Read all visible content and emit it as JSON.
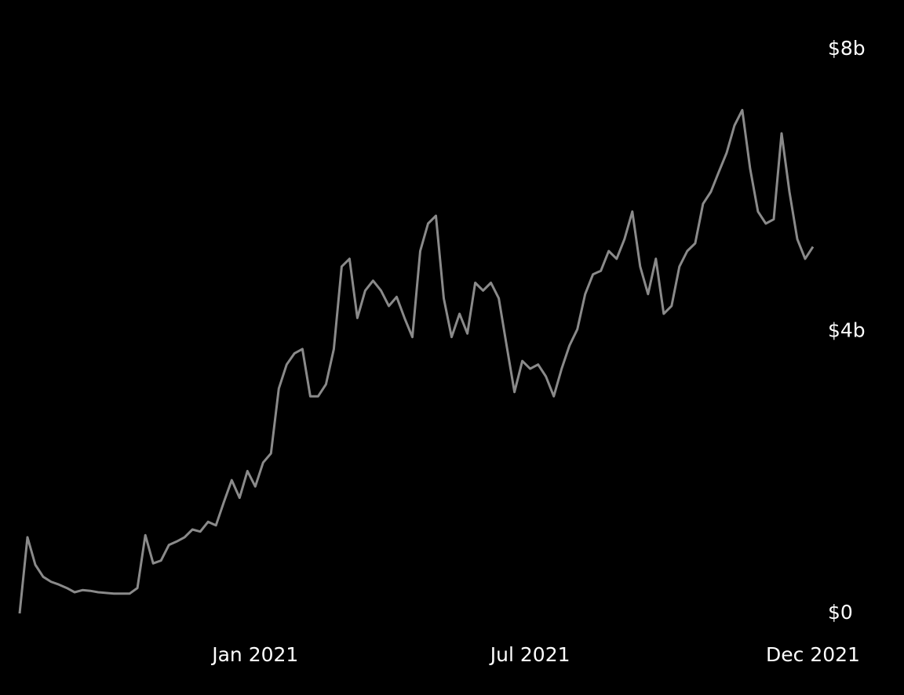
{
  "chart_data": {
    "type": "line",
    "categories": [
      null,
      null,
      null,
      null,
      null,
      null,
      null,
      null,
      null,
      null,
      null,
      null,
      null,
      null,
      null,
      null,
      null,
      null,
      null,
      null,
      null,
      null,
      null,
      null,
      null,
      null,
      null,
      null,
      null,
      null,
      "Jan 2021",
      null,
      null,
      null,
      null,
      null,
      null,
      null,
      null,
      null,
      null,
      null,
      null,
      null,
      null,
      null,
      null,
      null,
      null,
      null,
      null,
      null,
      null,
      null,
      null,
      null,
      null,
      null,
      null,
      null,
      null,
      null,
      null,
      null,
      null,
      "Jul 2021",
      null,
      null,
      null,
      null,
      null,
      null,
      null,
      null,
      null,
      null,
      null,
      null,
      null,
      null,
      null,
      null,
      null,
      null,
      null,
      null,
      null,
      null,
      null,
      null,
      null,
      null,
      null,
      null,
      null,
      null,
      null,
      null,
      null,
      null,
      null,
      "Dec 2021"
    ],
    "values": [
      0,
      1080000000.0,
      690000000.0,
      520000000.0,
      450000000.0,
      410000000.0,
      360000000.0,
      300000000.0,
      330000000.0,
      320000000.0,
      300000000.0,
      290000000.0,
      280000000.0,
      280000000.0,
      280000000.0,
      360000000.0,
      1110000000.0,
      710000000.0,
      750000000.0,
      970000000.0,
      1020000000.0,
      1080000000.0,
      1190000000.0,
      1160000000.0,
      1300000000.0,
      1250000000.0,
      1580000000.0,
      1890000000.0,
      1640000000.0,
      2020000000.0,
      1800000000.0,
      2140000000.0,
      2270000000.0,
      3190000000.0,
      3530000000.0,
      3690000000.0,
      3750000000.0,
      3080000000.0,
      3080000000.0,
      3250000000.0,
      3750000000.0,
      4920000000.0,
      5030000000.0,
      4190000000.0,
      4580000000.0,
      4720000000.0,
      4580000000.0,
      4360000000.0,
      4490000000.0,
      4190000000.0,
      3920000000.0,
      5140000000.0,
      5530000000.0,
      5640000000.0,
      4470000000.0,
      3920000000.0,
      4250000000.0,
      3970000000.0,
      4690000000.0,
      4580000000.0,
      4690000000.0,
      4470000000.0,
      3800000000.0,
      3140000000.0,
      3580000000.0,
      3470000000.0,
      3530000000.0,
      3360000000.0,
      3080000000.0,
      3470000000.0,
      3800000000.0,
      4030000000.0,
      4530000000.0,
      4810000000.0,
      4860000000.0,
      5140000000.0,
      5030000000.0,
      5310000000.0,
      5700000000.0,
      4920000000.0,
      4530000000.0,
      5030000000.0,
      4250000000.0,
      4360000000.0,
      4920000000.0,
      5140000000.0,
      5250000000.0,
      5810000000.0,
      5980000000.0,
      6260000000.0,
      6530000000.0,
      6920000000.0,
      7140000000.0,
      6310000000.0,
      5700000000.0,
      5530000000.0,
      5590000000.0,
      6810000000.0,
      5980000000.0,
      5310000000.0,
      5030000000.0,
      5200000000.0
    ],
    "color": "#8a8a8a",
    "ylim": [
      0,
      8000000000.0
    ],
    "yticks": [
      {
        "value": 0,
        "label": "$0"
      },
      {
        "value": 4000000000.0,
        "label": "$4b"
      },
      {
        "value": 8000000000.0,
        "label": "$8b"
      }
    ],
    "grid": false
  }
}
